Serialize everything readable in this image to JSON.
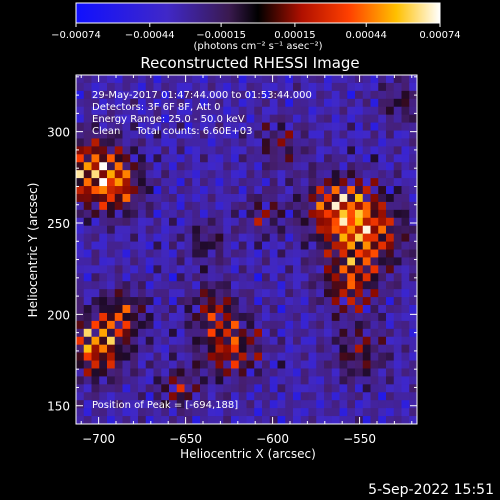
{
  "colorbar": {
    "ticks": [
      "-0.00074",
      "-0.00044",
      "-0.00015",
      "0.00015",
      "0.00044",
      "0.00074"
    ],
    "unit_label": "(photons cm⁻² s⁻¹ asec⁻²)",
    "range": [
      -0.00074,
      0.00074
    ]
  },
  "chart_data": {
    "type": "heatmap",
    "title": "Reconstructed RHESSI Image",
    "xlabel": "Heliocentric X (arcsec)",
    "ylabel": "Heliocentric Y (arcsec)",
    "xlim": [
      -713,
      -517
    ],
    "ylim": [
      140,
      331
    ],
    "x_ticks": [
      -700,
      -650,
      -600,
      -550
    ],
    "y_ticks": [
      150,
      200,
      250,
      300
    ],
    "info_lines": [
      "29-May-2017 01:47:44.000 to 01:53:44.000",
      "Detectors: 3F 6F 8F, Att 0",
      "Energy Range: 25.0 - 50.0 keV",
      "Clean     Total counts: 6.60E+03"
    ],
    "peak_label": "Position of Peak = [-694,188]",
    "colormap": "blue-purple-red-yellow-white",
    "grid": false
  },
  "footer": {
    "date": "5-Sep-2022 15:51"
  }
}
